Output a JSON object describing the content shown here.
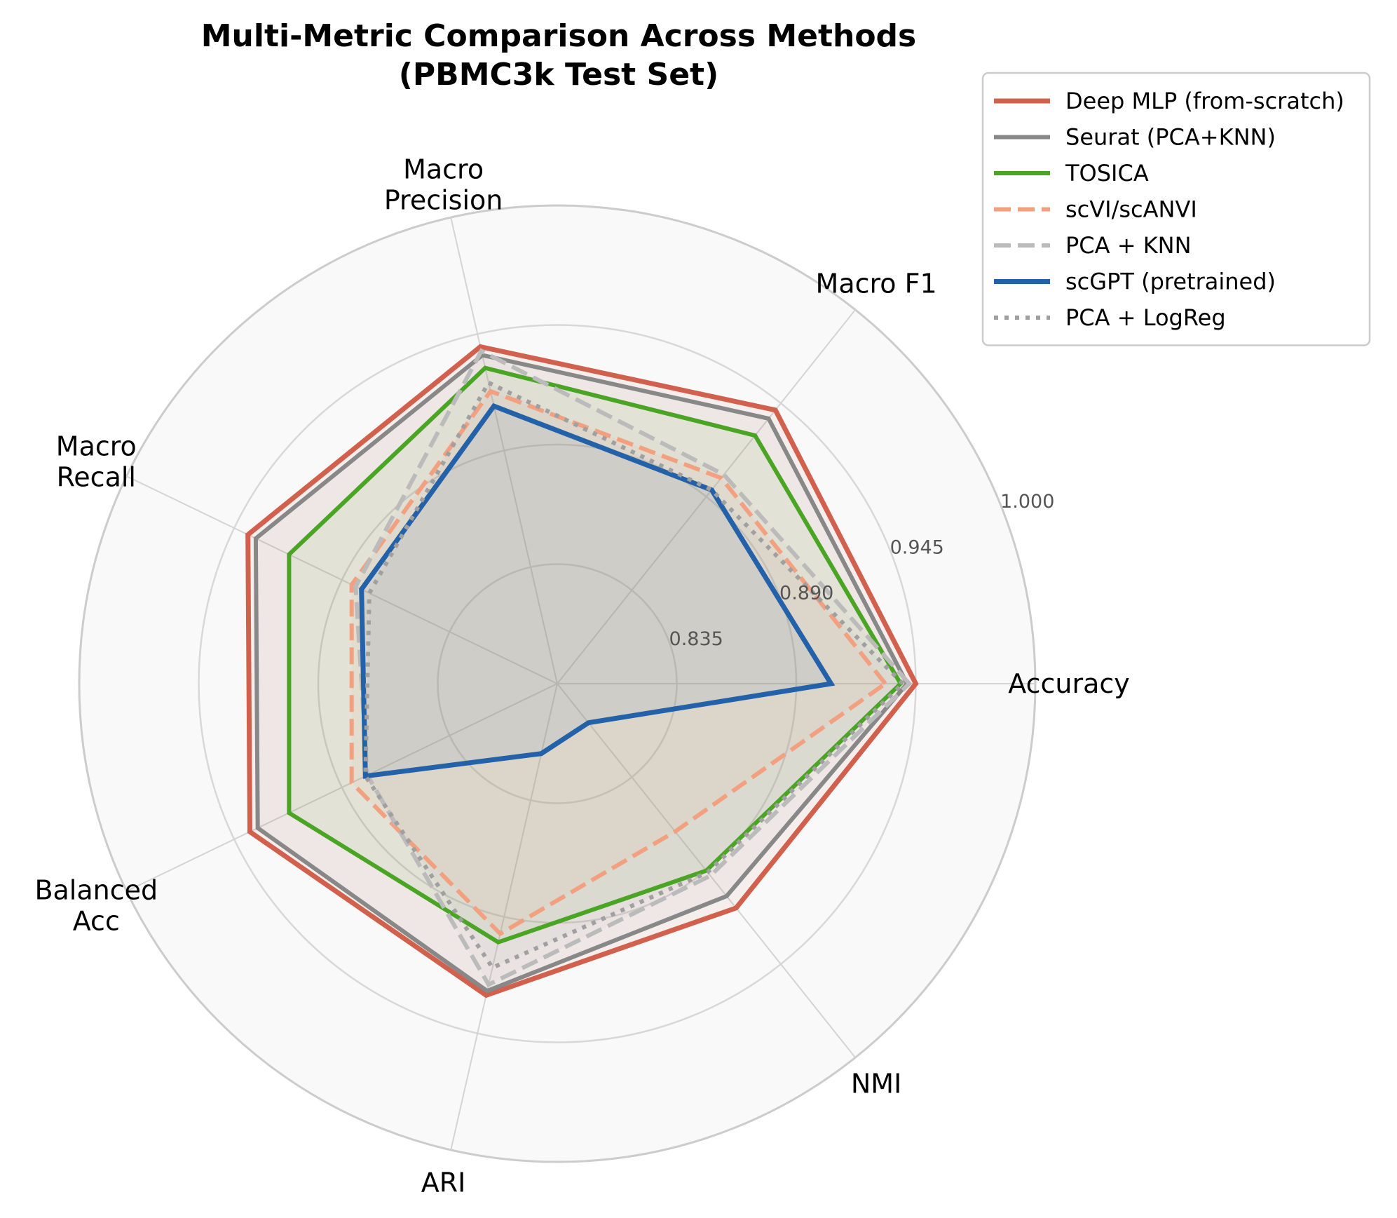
{
  "chart_data": {
    "type": "radar",
    "title": [
      "Multi-Metric Comparison Across Methods",
      "(PBMC3k Test Set)"
    ],
    "axes": [
      "Accuracy",
      "Macro F1",
      "Macro\nPrecision",
      "Macro\nRecall",
      "Balanced\nAcc",
      "ARI",
      "NMI"
    ],
    "rlim": [
      0.78,
      1.0
    ],
    "rticks": [
      0.835,
      0.89,
      0.945,
      1.0
    ],
    "rtick_labels": [
      "0.835",
      "0.890",
      "0.945",
      "1.000"
    ],
    "grid": true,
    "legend_position": "top-right",
    "series": [
      {
        "name": "Deep MLP (from-scratch)",
        "color": "#d1604d",
        "dash": "solid",
        "width": 7,
        "fill": "#d1604d",
        "fill_opacity": 0.07,
        "values": [
          0.945,
          0.941,
          0.939,
          0.938,
          0.937,
          0.927,
          0.912
        ]
      },
      {
        "name": "Seurat (PCA+KNN)",
        "color": "#888888",
        "dash": "solid",
        "width": 6,
        "fill": "#888888",
        "fill_opacity": 0.07,
        "values": [
          0.941,
          0.936,
          0.935,
          0.934,
          0.933,
          0.925,
          0.905
        ]
      },
      {
        "name": "TOSICA",
        "color": "#4aa524",
        "dash": "solid",
        "width": 6,
        "fill": "#4aa524",
        "fill_opacity": 0.07,
        "values": [
          0.938,
          0.926,
          0.929,
          0.917,
          0.917,
          0.902,
          0.89
        ]
      },
      {
        "name": "scVI/scANVI",
        "color": "#f2a07f",
        "dash": "dashed",
        "width": 6,
        "fill": "#f2a07f",
        "fill_opacity": 0.07,
        "values": [
          0.931,
          0.901,
          0.918,
          0.885,
          0.885,
          0.898,
          0.867
        ]
      },
      {
        "name": "PCA + KNN",
        "color": "#bbbbbb",
        "dash": "dashed",
        "width": 6,
        "fill": "#bbbbbb",
        "fill_opacity": 0.07,
        "values": [
          0.942,
          0.903,
          0.937,
          0.883,
          0.877,
          0.922,
          0.893
        ]
      },
      {
        "name": "scGPT (pretrained)",
        "color": "#2361a8",
        "dash": "solid",
        "width": 7,
        "fill": "#2361a8",
        "fill_opacity": 0.07,
        "values": [
          0.906,
          0.894,
          0.911,
          0.88,
          0.878,
          0.813,
          0.803
        ]
      },
      {
        "name": "PCA + LogReg",
        "color": "#a0a0a0",
        "dash": "dotted",
        "width": 6,
        "fill": "#a0a0a0",
        "fill_opacity": 0.07,
        "values": [
          0.939,
          0.894,
          0.922,
          0.876,
          0.878,
          0.914,
          0.891
        ]
      }
    ]
  }
}
